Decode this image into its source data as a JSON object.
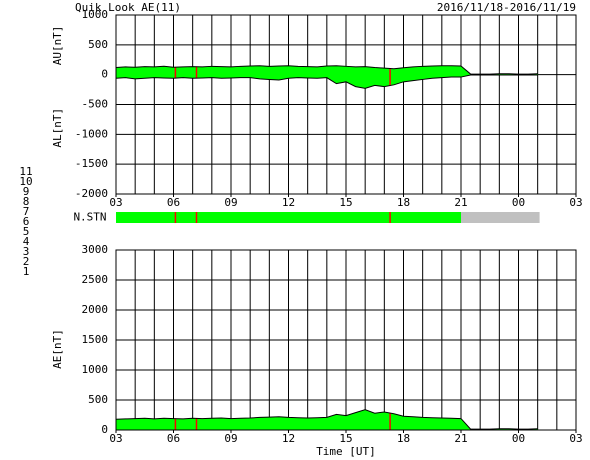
{
  "header": {
    "title": "Quik Look AE(11)",
    "date_range": "2016/11/18-2016/11/19"
  },
  "station_legend": [
    {
      "label": "11",
      "color": "#00e0e0"
    },
    {
      "label": "10",
      "color": "#ff00ff"
    },
    {
      "label": "9",
      "color": "#000080"
    },
    {
      "label": "8",
      "color": "#e0e070"
    },
    {
      "label": "7",
      "color": "#90e090"
    },
    {
      "label": "6",
      "color": "#ff0000"
    },
    {
      "label": "5",
      "color": "#d0d0d0"
    },
    {
      "label": "4",
      "color": "#a0a0a0"
    },
    {
      "label": "3",
      "color": "#008080"
    },
    {
      "label": "2",
      "color": "#800080"
    },
    {
      "label": "1",
      "color": "#0000ff"
    }
  ],
  "chart_data": [
    {
      "type": "area",
      "y_labels": [
        "AU[nT]",
        "AL[nT]"
      ],
      "fill": "#00ff00",
      "line_color": "#000000",
      "grid": true,
      "grid_step_x": 1,
      "xlim": [
        3,
        27
      ],
      "ylim": [
        -2000,
        1000
      ],
      "xticks": [
        {
          "value": 3,
          "label": "03"
        },
        {
          "value": 6,
          "label": "06"
        },
        {
          "value": 9,
          "label": "09"
        },
        12,
        15,
        18,
        21,
        {
          "value": 24,
          "label": "00"
        },
        {
          "value": 27,
          "label": "03"
        }
      ],
      "yticks": [
        -2000,
        -1500,
        -1000,
        -500,
        0,
        500,
        1000
      ],
      "x": [
        3,
        3.5,
        4,
        4.5,
        5,
        5.5,
        6,
        6.5,
        7,
        7.5,
        8,
        8.5,
        9,
        9.5,
        10,
        10.5,
        11,
        11.5,
        12,
        12.5,
        13,
        13.5,
        14,
        14.5,
        15,
        15.5,
        16,
        16.5,
        17,
        17.5,
        18,
        18.5,
        19,
        19.5,
        20,
        20.5,
        21,
        21.5,
        22,
        22.5,
        23,
        23.5,
        24,
        24.5,
        25
      ],
      "series": [
        {
          "name": "AU",
          "values": [
            120,
            130,
            125,
            135,
            130,
            140,
            125,
            130,
            135,
            130,
            140,
            135,
            130,
            140,
            145,
            150,
            140,
            145,
            150,
            140,
            135,
            130,
            145,
            150,
            140,
            130,
            135,
            120,
            110,
            100,
            115,
            130,
            140,
            145,
            150,
            150,
            145,
            10,
            10,
            10,
            15,
            15,
            10,
            10,
            15
          ]
        },
        {
          "name": "AL",
          "values": [
            -60,
            -50,
            -70,
            -60,
            -50,
            -55,
            -60,
            -50,
            -60,
            -55,
            -50,
            -60,
            -55,
            -50,
            -50,
            -70,
            -80,
            -90,
            -60,
            -50,
            -55,
            -60,
            -50,
            -150,
            -120,
            -200,
            -230,
            -180,
            -200,
            -170,
            -120,
            -100,
            -80,
            -60,
            -50,
            -40,
            -40,
            -5,
            -5,
            -5,
            -5,
            -5,
            -5,
            -5,
            -5
          ]
        }
      ],
      "markers": {
        "color": "#ff0000",
        "x": [
          6.1,
          7.2,
          17.3
        ]
      }
    },
    {
      "type": "status",
      "label": "N.STN",
      "xlim": [
        3,
        27
      ],
      "segments": [
        {
          "start": 3,
          "end": 21,
          "color": "#00ff00"
        },
        {
          "start": 21,
          "end": 25.1,
          "color": "#c0c0c0"
        }
      ],
      "markers": {
        "color": "#ff0000",
        "x": [
          6.1,
          7.2,
          17.3
        ]
      }
    },
    {
      "type": "area",
      "y_labels": [
        "AE[nT]"
      ],
      "xlabel": "Time [UT]",
      "fill": "#00ff00",
      "line_color": "#000000",
      "grid": true,
      "grid_step_x": 1,
      "xlim": [
        3,
        27
      ],
      "ylim": [
        0,
        3000
      ],
      "xticks": [
        {
          "value": 3,
          "label": "03"
        },
        {
          "value": 6,
          "label": "06"
        },
        {
          "value": 9,
          "label": "09"
        },
        12,
        15,
        18,
        21,
        {
          "value": 24,
          "label": "00"
        },
        {
          "value": 27,
          "label": "03"
        }
      ],
      "yticks": [
        0,
        500,
        1000,
        1500,
        2000,
        2500,
        3000
      ],
      "x": [
        3,
        3.5,
        4,
        4.5,
        5,
        5.5,
        6,
        6.5,
        7,
        7.5,
        8,
        8.5,
        9,
        9.5,
        10,
        10.5,
        11,
        11.5,
        12,
        12.5,
        13,
        13.5,
        14,
        14.5,
        15,
        15.5,
        16,
        16.5,
        17,
        17.5,
        18,
        18.5,
        19,
        19.5,
        20,
        20.5,
        21,
        21.5,
        22,
        22.5,
        23,
        23.5,
        24,
        24.5,
        25
      ],
      "series": [
        {
          "name": "AE",
          "values": [
            180,
            185,
            190,
            195,
            185,
            195,
            190,
            185,
            195,
            190,
            195,
            200,
            190,
            195,
            200,
            210,
            215,
            220,
            210,
            205,
            200,
            205,
            210,
            260,
            240,
            290,
            340,
            280,
            300,
            270,
            230,
            220,
            210,
            205,
            200,
            195,
            190,
            15,
            15,
            15,
            20,
            20,
            15,
            15,
            20
          ]
        }
      ],
      "markers": {
        "color": "#ff0000",
        "x": [
          6.1,
          7.2,
          17.3
        ]
      }
    }
  ]
}
